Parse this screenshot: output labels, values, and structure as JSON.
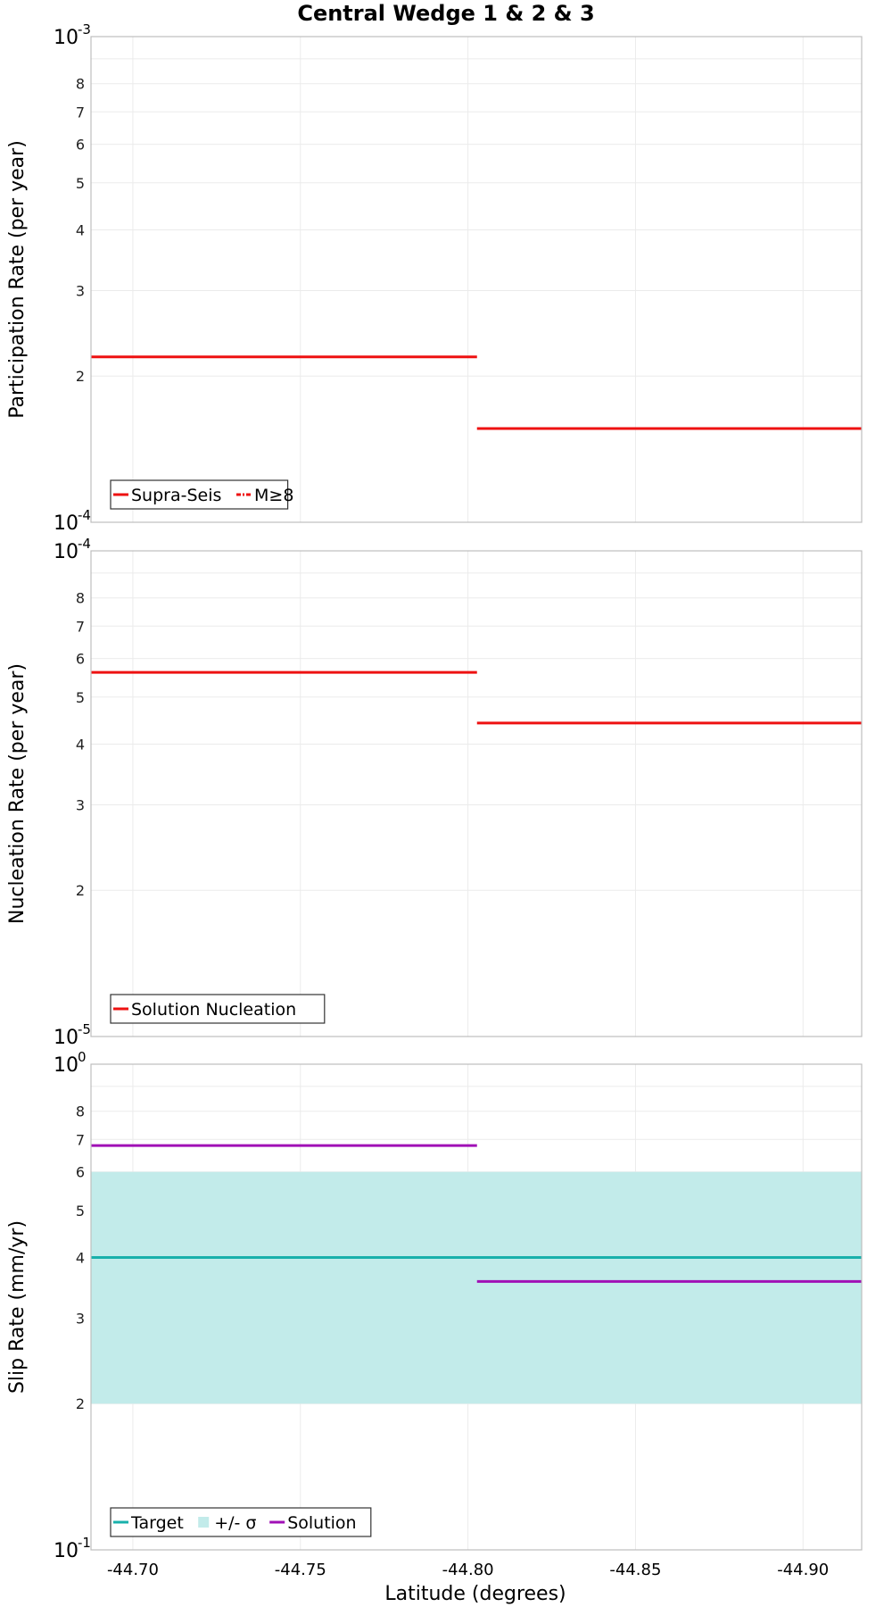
{
  "chart_data": {
    "type": "line",
    "title": "Central Wedge 1 & 2 & 3",
    "xlabel": "Latitude (degrees)",
    "xlim": [
      -44.6875,
      -44.9175
    ],
    "xticks": [
      -44.7,
      -44.75,
      -44.8,
      -44.85,
      -44.9
    ],
    "xtick_labels": [
      "-44.70",
      "-44.75",
      "-44.80",
      "-44.85",
      "-44.90"
    ],
    "colors": {
      "red": "#ee1111",
      "teal": "#19b0ab",
      "band": "#c2ebea",
      "purple": "#a010b6"
    },
    "panels": [
      {
        "id": "participation",
        "ylabel": "Participation Rate (per year)",
        "yscale": "log",
        "ylim": [
          0.0001,
          0.001
        ],
        "major_ticks": [
          {
            "base": "10",
            "exp": "-4"
          },
          {
            "base": "10",
            "exp": "-3"
          }
        ],
        "minor_tick_labels": [
          "2",
          "3",
          "4",
          "5",
          "6",
          "7",
          "8"
        ],
        "series": [
          {
            "name": "Supra-Seis",
            "style": "solid",
            "color": "red",
            "segments": [
              {
                "x0": -44.6875,
                "x1": -44.8027,
                "y": 0.000219
              },
              {
                "x0": -44.8027,
                "x1": -44.9175,
                "y": 0.000156
              }
            ]
          },
          {
            "name": "M≥8",
            "style": "dashdot",
            "color": "red",
            "segments": []
          }
        ],
        "legend": [
          {
            "label": "Supra-Seis",
            "style": "solid",
            "color": "red"
          },
          {
            "label": "M≥8",
            "style": "dashdot",
            "color": "red"
          }
        ]
      },
      {
        "id": "nucleation",
        "ylabel": "Nucleation Rate (per year)",
        "yscale": "log",
        "ylim": [
          1e-05,
          0.0001
        ],
        "major_ticks": [
          {
            "base": "10",
            "exp": "-5"
          },
          {
            "base": "10",
            "exp": "-4"
          }
        ],
        "minor_tick_labels": [
          "2",
          "3",
          "4",
          "5",
          "6",
          "7",
          "8"
        ],
        "series": [
          {
            "name": "Solution Nucleation",
            "style": "solid",
            "color": "red",
            "segments": [
              {
                "x0": -44.6875,
                "x1": -44.8027,
                "y": 5.62e-05
              },
              {
                "x0": -44.8027,
                "x1": -44.9175,
                "y": 4.42e-05
              }
            ]
          }
        ],
        "legend": [
          {
            "label": "Solution Nucleation",
            "style": "solid",
            "color": "red"
          }
        ]
      },
      {
        "id": "slip",
        "ylabel": "Slip Rate (mm/yr)",
        "yscale": "log",
        "ylim": [
          0.1,
          1
        ],
        "major_ticks": [
          {
            "base": "10",
            "exp": "-1"
          },
          {
            "base": "10",
            "exp": "0"
          }
        ],
        "minor_tick_labels": [
          "2",
          "3",
          "4",
          "5",
          "6",
          "7",
          "8"
        ],
        "band": {
          "name": "+/- σ",
          "y0": 0.2,
          "y1": 0.6,
          "color": "band"
        },
        "series": [
          {
            "name": "Target",
            "style": "solid",
            "color": "teal",
            "segments": [
              {
                "x0": -44.6875,
                "x1": -44.9175,
                "y": 0.4
              }
            ]
          },
          {
            "name": "Solution",
            "style": "solid",
            "color": "purple",
            "segments": [
              {
                "x0": -44.6875,
                "x1": -44.8027,
                "y": 0.68
              },
              {
                "x0": -44.8027,
                "x1": -44.9175,
                "y": 0.357
              }
            ]
          }
        ],
        "legend": [
          {
            "label": "Target",
            "style": "solid",
            "color": "teal"
          },
          {
            "label": "+/- σ",
            "style": "patch",
            "color": "band"
          },
          {
            "label": "Solution",
            "style": "solid",
            "color": "purple"
          }
        ]
      }
    ]
  }
}
